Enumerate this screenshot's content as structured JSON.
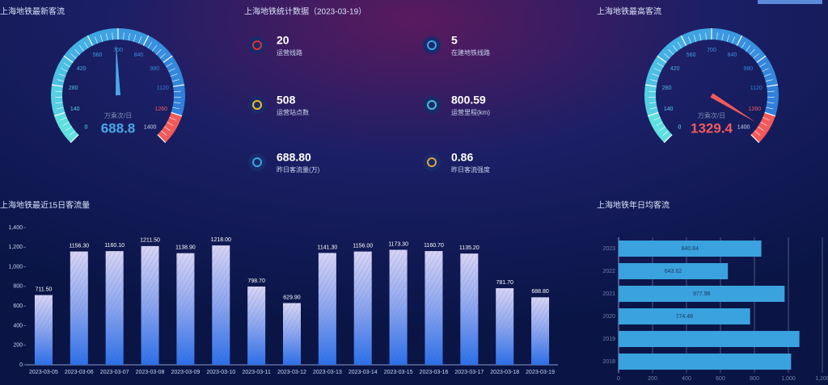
{
  "chart_data": [
    {
      "type": "gauge",
      "title": "上海地铁最新客流",
      "value": 688.8,
      "unit": "万乘次/日",
      "ylim": [
        0,
        1400
      ],
      "yticks": [
        0,
        140,
        280,
        420,
        560,
        700,
        840,
        980,
        1120,
        1260,
        1400
      ],
      "band_colors": [
        "#5fe0e0",
        "#55d0e2",
        "#4cc0e4",
        "#44b0e4",
        "#3fa4e2",
        "#3a98e0",
        "#3690de",
        "#3388dc",
        "#3080da",
        "#f25a5a"
      ],
      "color": "#4aa8e8"
    },
    {
      "type": "gauge",
      "title": "上海地铁最高客流",
      "value": 1329.4,
      "unit": "万乘次/日",
      "ylim": [
        0,
        1400
      ],
      "yticks": [
        0,
        140,
        280,
        420,
        560,
        700,
        840,
        980,
        1120,
        1260,
        1400
      ],
      "band_colors": [
        "#5fe0e0",
        "#55d0e2",
        "#4cc0e4",
        "#44b0e4",
        "#3fa4e2",
        "#3a98e0",
        "#3690de",
        "#3388dc",
        "#3080da",
        "#f25a5a"
      ],
      "color": "#f25a5a"
    },
    {
      "type": "bar",
      "title": "上海地铁最近15日客流量",
      "categories": [
        "2023-03-05",
        "2023-03-06",
        "2023-03-07",
        "2023-03-08",
        "2023-03-09",
        "2023-03-10",
        "2023-03-11",
        "2023-03-12",
        "2023-03-13",
        "2023-03-14",
        "2023-03-15",
        "2023-03-16",
        "2023-03-17",
        "2023-03-18",
        "2023-03-19"
      ],
      "values": [
        711.5,
        1156.3,
        1160.1,
        1211.5,
        1138.9,
        1218,
        798.7,
        629.9,
        1141.3,
        1156,
        1173.3,
        1160.7,
        1135.2,
        781.7,
        688.8
      ],
      "value_labels": [
        "711.50",
        "1156.30",
        "1160.10",
        "1211.50",
        "1138.90",
        "1218.00",
        "798.70",
        "629.90",
        "1141.30",
        "1156.00",
        "1173.30",
        "1160.70",
        "1135.20",
        "781.70",
        "688.80"
      ],
      "ylim": [
        0,
        1400
      ],
      "yticks": [
        0,
        200,
        400,
        600,
        800,
        {
          "value": 1000,
          "label": "1,000"
        },
        {
          "value": 1200,
          "label": "1,200"
        },
        {
          "value": 1400,
          "label": "1,400"
        }
      ],
      "color": "#2a6ee8"
    },
    {
      "type": "hbar",
      "title": "上海地铁年日均客流",
      "categories": [
        "2023",
        "2022",
        "2021",
        "2020",
        "2019",
        "2018"
      ],
      "values": [
        840.84,
        643.62,
        977.96,
        774.48,
        1065,
        1016
      ],
      "value_labels": [
        "840.84",
        "643.62",
        "977.96",
        "774.48",
        null,
        null
      ],
      "xlim": [
        0,
        1200
      ],
      "xticks": [
        0,
        200,
        400,
        600,
        800,
        {
          "value": 1000,
          "label": "1,000"
        },
        {
          "value": 1200,
          "label": "1,200"
        }
      ],
      "color": "#3aa2de",
      "grid": true
    }
  ],
  "stats": {
    "title": "上海地铁统计数据（2023-03-19）",
    "items": [
      {
        "value": "20",
        "label": "运营线路"
      },
      {
        "value": "5",
        "label": "在建地铁线路"
      },
      {
        "value": "508",
        "label": "运营站点数"
      },
      {
        "value": "800.59",
        "label": "运营里程(km)"
      },
      {
        "value": "688.80",
        "label": "昨日客流量(万)"
      },
      {
        "value": "0.86",
        "label": "昨日客流强度"
      }
    ]
  }
}
